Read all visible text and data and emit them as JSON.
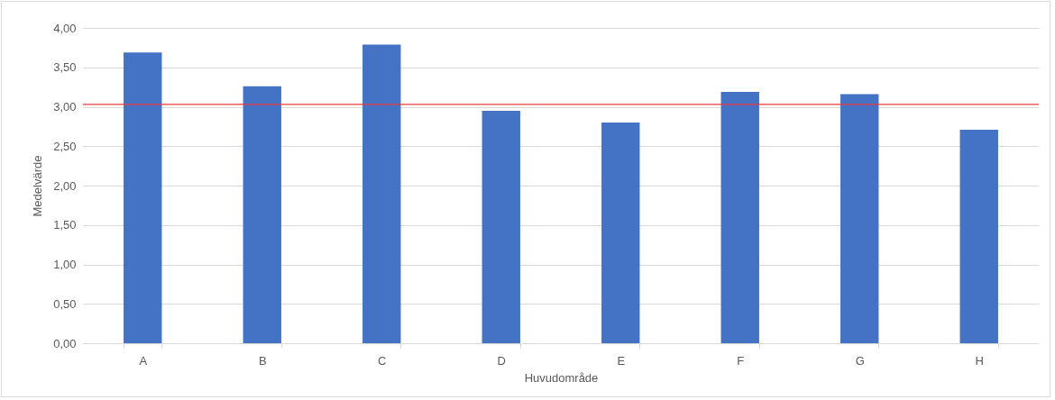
{
  "chart_data": {
    "type": "bar",
    "xlabel": "Huvudområde",
    "ylabel": "Medelvärde",
    "categories": [
      "A",
      "B",
      "C",
      "D",
      "E",
      "F",
      "G",
      "H"
    ],
    "values": [
      3.69,
      3.26,
      3.79,
      2.95,
      2.8,
      3.19,
      3.16,
      2.71
    ],
    "color": "#4472c4",
    "ylim": [
      0,
      4
    ],
    "yticks": [
      {
        "value": 0,
        "label": "0,00"
      },
      {
        "value": 0.5,
        "label": "0,50"
      },
      {
        "value": 1,
        "label": "1,00"
      },
      {
        "value": 1.5,
        "label": "1,50"
      },
      {
        "value": 2,
        "label": "2,00"
      },
      {
        "value": 2.5,
        "label": "2,50"
      },
      {
        "value": 3,
        "label": "3,00"
      },
      {
        "value": 3.5,
        "label": "3,50"
      },
      {
        "value": 4,
        "label": "4,00"
      }
    ],
    "grid": "y",
    "ref_lines": [
      {
        "axis": "y",
        "value": 3.03,
        "color": "#e8393e"
      }
    ]
  }
}
